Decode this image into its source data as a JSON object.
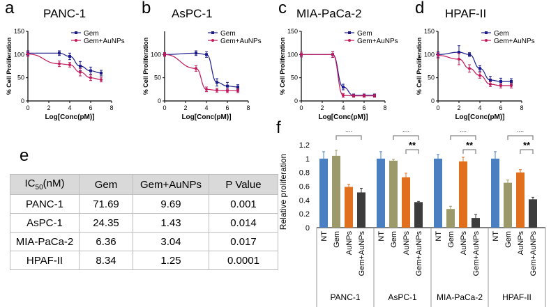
{
  "panels": {
    "a": {
      "letter": "a",
      "title": "PANC-1"
    },
    "b": {
      "letter": "b",
      "title": "AsPC-1"
    },
    "c": {
      "letter": "c",
      "title": "MIA-PaCa-2"
    },
    "d": {
      "letter": "d",
      "title": "HPAF-II"
    },
    "e": {
      "letter": "e"
    },
    "f": {
      "letter": "f"
    }
  },
  "table": {
    "headers": [
      "IC50(nM)",
      "Gem",
      "Gem+AuNPs",
      "P Value"
    ],
    "header_main": "IC",
    "header_sub": "50",
    "header_unit": "(nM)",
    "rows": [
      [
        "PANC-1",
        "71.69",
        "9.69",
        "0.001"
      ],
      [
        "AsPC-1",
        "24.35",
        "1.43",
        "0.014"
      ],
      [
        "MIA-PaCa-2",
        "6.36",
        "3.04",
        "0.017"
      ],
      [
        "HPAF-II",
        "8.34",
        "1.25",
        "0.0001"
      ]
    ]
  },
  "colors": {
    "gem": "#1a1a8c",
    "gem_aunps": "#c0185a",
    "nt": "#4a7fc1",
    "bar_gem": "#9c9a6a",
    "aunps": "#e0701e",
    "combo": "#3c3c3c"
  },
  "chart_data": [
    {
      "type": "line",
      "panel": "a",
      "title": "PANC-1",
      "xlabel": "Log[Conc(pM)]",
      "ylabel": "% Cell Proliferation",
      "xlim": [
        0,
        8
      ],
      "ylim": [
        0,
        150
      ],
      "xticks": [
        0,
        2,
        4,
        6,
        8
      ],
      "yticks": [
        0,
        50,
        100,
        150
      ],
      "legend": "top-right",
      "series": [
        {
          "name": "Gem",
          "x": [
            0,
            3,
            4,
            5,
            6,
            7
          ],
          "y": [
            103,
            103,
            96,
            75,
            65,
            60
          ],
          "err": [
            5,
            5,
            7,
            10,
            8,
            6
          ]
        },
        {
          "name": "Gem+AuNPs",
          "x": [
            0,
            3,
            4,
            5,
            6,
            7
          ],
          "y": [
            101,
            80,
            78,
            62,
            50,
            46
          ],
          "err": [
            5,
            6,
            5,
            8,
            6,
            5
          ]
        }
      ]
    },
    {
      "type": "line",
      "panel": "b",
      "title": "AsPC-1",
      "xlabel": "Log[Conc(pM)]",
      "ylabel": "% Cell Proliferation",
      "xlim": [
        0,
        8
      ],
      "ylim": [
        0,
        150
      ],
      "xticks": [
        0,
        2,
        4,
        6,
        8
      ],
      "yticks": [
        0,
        50,
        100
      ],
      "legend": "top-right",
      "series": [
        {
          "name": "Gem",
          "x": [
            0,
            3,
            4,
            5,
            6,
            7
          ],
          "y": [
            100,
            103,
            100,
            40,
            32,
            30
          ],
          "err": [
            4,
            5,
            6,
            8,
            8,
            5
          ]
        },
        {
          "name": "Gem+AuNPs",
          "x": [
            0,
            3,
            4,
            5,
            6,
            7
          ],
          "y": [
            100,
            70,
            25,
            23,
            22,
            22
          ],
          "err": [
            4,
            6,
            5,
            4,
            4,
            4
          ]
        }
      ]
    },
    {
      "type": "line",
      "panel": "c",
      "title": "MIA-PaCa-2",
      "xlabel": "Log[Conc(pM)]",
      "ylabel": "% Cell Proliferation",
      "xlim": [
        0,
        8
      ],
      "ylim": [
        0,
        150
      ],
      "xticks": [
        0,
        2,
        4,
        6,
        8
      ],
      "yticks": [
        0,
        50,
        100,
        150
      ],
      "legend": "top-right",
      "series": [
        {
          "name": "Gem",
          "x": [
            0,
            3,
            4,
            5,
            6,
            7
          ],
          "y": [
            100,
            100,
            30,
            12,
            12,
            12
          ],
          "err": [
            5,
            6,
            6,
            3,
            3,
            3
          ]
        },
        {
          "name": "Gem+AuNPs",
          "x": [
            0,
            3,
            4,
            5,
            6,
            7
          ],
          "y": [
            100,
            100,
            12,
            11,
            11,
            11
          ],
          "err": [
            5,
            6,
            4,
            3,
            3,
            3
          ]
        }
      ]
    },
    {
      "type": "line",
      "panel": "d",
      "title": "HPAF-II",
      "xlabel": "Log[Conc(pM)]",
      "ylabel": "% Cell Proliferation",
      "xlim": [
        0,
        8
      ],
      "ylim": [
        0,
        150
      ],
      "xticks": [
        0,
        2,
        4,
        6,
        8
      ],
      "yticks": [
        0,
        50,
        100,
        150
      ],
      "legend": "top-right",
      "series": [
        {
          "name": "Gem",
          "x": [
            0,
            2,
            3,
            4,
            5,
            6,
            7
          ],
          "y": [
            100,
            105,
            100,
            70,
            45,
            42,
            42
          ],
          "err": [
            6,
            14,
            4,
            6,
            8,
            7,
            6
          ]
        },
        {
          "name": "Gem+AuNPs",
          "x": [
            0,
            2,
            3,
            4,
            5,
            6,
            7
          ],
          "y": [
            98,
            90,
            70,
            55,
            36,
            33,
            33
          ],
          "err": [
            6,
            12,
            8,
            6,
            5,
            5,
            5
          ]
        }
      ]
    },
    {
      "type": "bar",
      "panel": "f",
      "ylabel": "Relative proliferation",
      "ylim": [
        0,
        1.2
      ],
      "yticks": [
        "0",
        "0.2",
        "0.4",
        "0.6",
        "0.8",
        "1",
        "1.2"
      ],
      "bar_labels": [
        "NT",
        "Gem",
        "AuNPs",
        "Gem+AuNPs"
      ],
      "groups": [
        {
          "name": "PANC-1",
          "values": [
            1.0,
            1.04,
            0.59,
            0.51
          ],
          "err": [
            0.1,
            0.08,
            0.04,
            0.06
          ]
        },
        {
          "name": "AsPC-1",
          "values": [
            1.0,
            0.97,
            0.73,
            0.37
          ],
          "err": [
            0.1,
            0.02,
            0.06,
            0.01
          ]
        },
        {
          "name": "MIA-PaCa-2",
          "values": [
            1.0,
            0.27,
            0.96,
            0.14
          ],
          "err": [
            0.06,
            0.04,
            0.06,
            0.05
          ]
        },
        {
          "name": "HPAF-II",
          "values": [
            1.0,
            0.65,
            0.8,
            0.41
          ],
          "err": [
            0.1,
            0.04,
            0.04,
            0.03
          ]
        }
      ],
      "significance": [
        {
          "group": 0,
          "from": 1,
          "to": 3,
          "label": "**"
        },
        {
          "group": 1,
          "from": 1,
          "to": 3,
          "label": "**"
        },
        {
          "group": 1,
          "from": 2,
          "to": 3,
          "label": "**"
        },
        {
          "group": 2,
          "from": 1,
          "to": 3,
          "label": "**"
        },
        {
          "group": 2,
          "from": 2,
          "to": 3,
          "label": "**"
        },
        {
          "group": 3,
          "from": 1,
          "to": 3,
          "label": "**"
        },
        {
          "group": 3,
          "from": 2,
          "to": 3,
          "label": "**"
        }
      ]
    }
  ]
}
